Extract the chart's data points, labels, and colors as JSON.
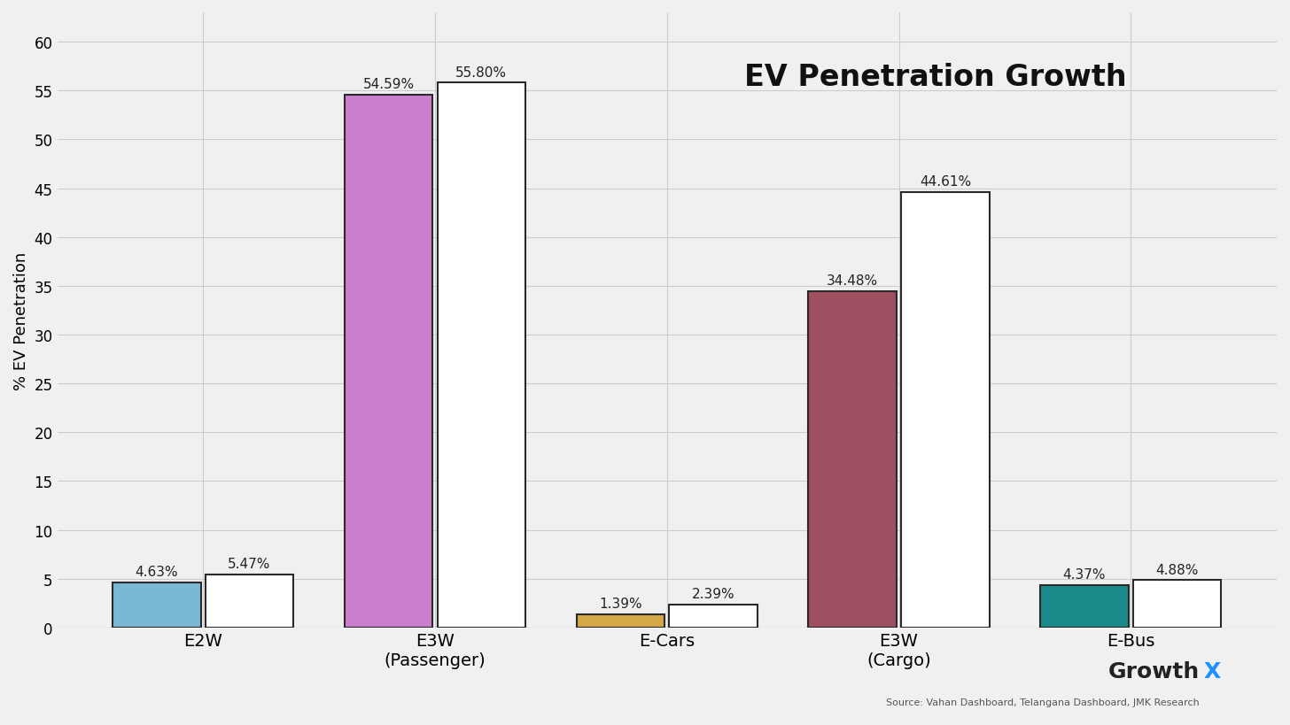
{
  "title": "EV Penetration Growth",
  "ylabel": "% EV Penetration",
  "categories": [
    "E2W",
    "E3W\n(Passenger)",
    "E-Cars",
    "E3W\n(Cargo)",
    "E-Bus"
  ],
  "series1_values": [
    4.63,
    54.59,
    1.39,
    34.48,
    4.37
  ],
  "series2_values": [
    5.47,
    55.8,
    2.39,
    44.61,
    4.88
  ],
  "series1_colors": [
    "#7BB8D4",
    "#C97FCC",
    "#D4A847",
    "#9E5060",
    "#1B8A8A"
  ],
  "series2_color": "#FFFFFF",
  "bar_edge_color": "#2A2A2A",
  "ylim": [
    0,
    63
  ],
  "yticks": [
    0,
    5,
    10,
    15,
    20,
    25,
    30,
    35,
    40,
    45,
    50,
    55,
    60
  ],
  "background_color": "#F0F0F0",
  "grid_color": "#CCCCCC",
  "title_fontsize": 24,
  "label_fontsize": 12,
  "tick_fontsize": 12,
  "annotation_fontsize": 11,
  "source_text": "Source: Vahan Dashboard, Telangana Dashboard, JMK Research",
  "growthx_color_main": "#222222",
  "growthx_color_x": "#1E90FF",
  "bar_width": 0.38,
  "bar_gap": 0.02
}
